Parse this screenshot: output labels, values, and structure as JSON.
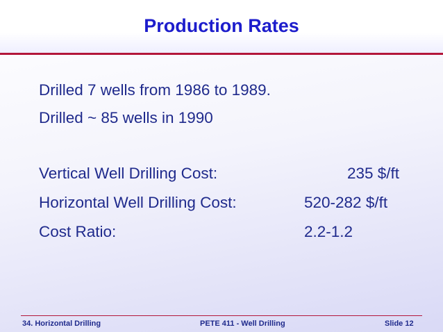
{
  "slide": {
    "title": "Production Rates",
    "lines": [
      "Drilled 7 wells from 1986 to 1989.",
      "Drilled ~ 85 wells in 1990"
    ],
    "costs": [
      {
        "label": "Vertical Well Drilling Cost:",
        "value": "235 $/ft"
      },
      {
        "label": "Horizontal Well Drilling Cost:",
        "value": "520-282 $/ft"
      },
      {
        "label": "Cost Ratio:",
        "value": "2.2-1.2"
      }
    ]
  },
  "footer": {
    "left": "34. Horizontal Drilling",
    "center": "PETE 411 -  Well Drilling",
    "right": "Slide 12"
  },
  "colors": {
    "title": "#1d1dcc",
    "body_text": "#1f2a8c",
    "rule": "#b3163a"
  }
}
